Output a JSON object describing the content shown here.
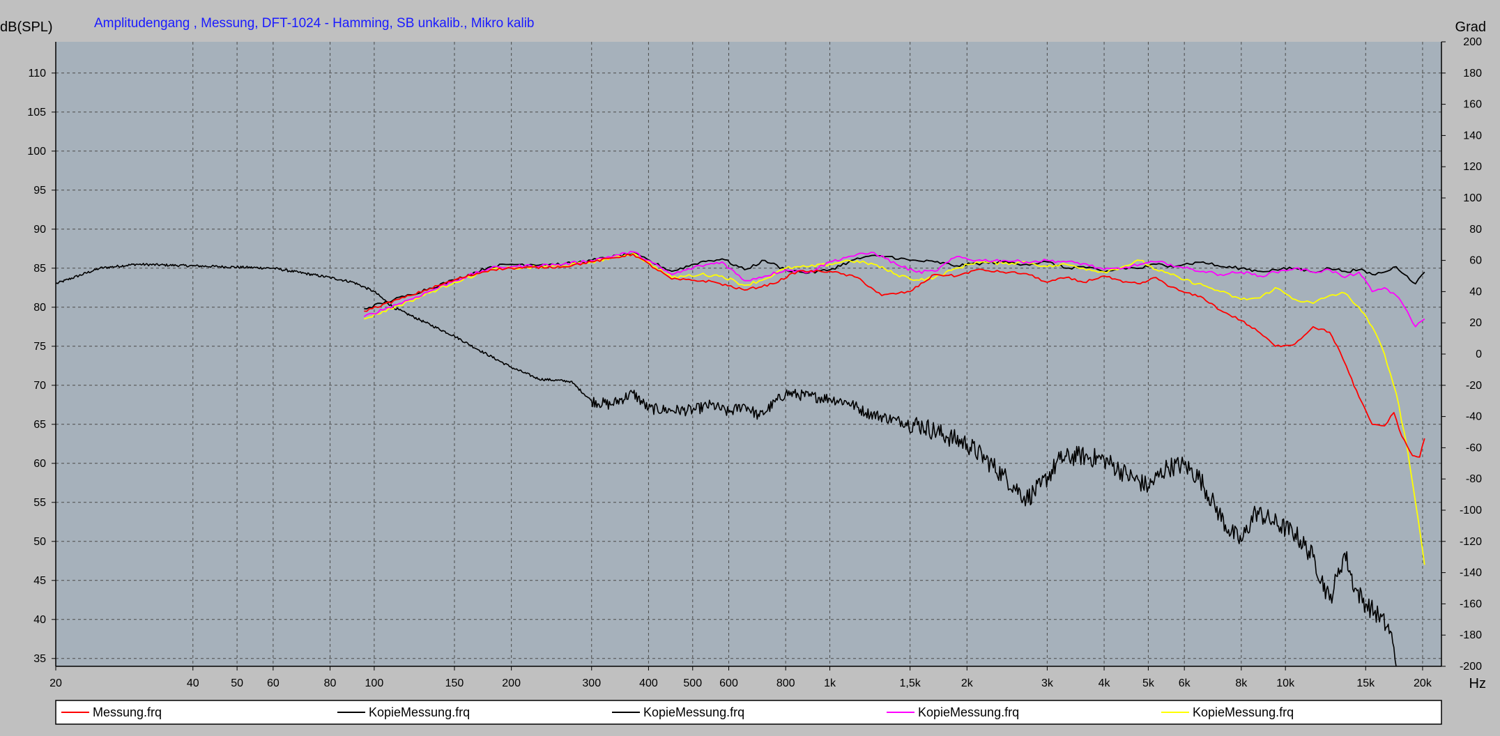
{
  "chart_data": {
    "type": "line",
    "title": "Amplitudengang , Messung, DFT-1024 - Hamming, SB unkalib., Mikro kalib",
    "ylabel": "dB(SPL)",
    "y2label": "Grad",
    "xlabel": "Hz",
    "x_scale": "log",
    "xlim": [
      20,
      22000
    ],
    "ylim": [
      34,
      114
    ],
    "y2lim": [
      -200,
      200
    ],
    "grid": true,
    "plot_background": "#a6b1bb",
    "frame_background": "#c0c0c0",
    "x_ticks": [
      {
        "v": 20,
        "label": "20"
      },
      {
        "v": 40,
        "label": "40"
      },
      {
        "v": 50,
        "label": "50"
      },
      {
        "v": 60,
        "label": "60"
      },
      {
        "v": 80,
        "label": "80"
      },
      {
        "v": 100,
        "label": "100"
      },
      {
        "v": 150,
        "label": "150"
      },
      {
        "v": 200,
        "label": "200"
      },
      {
        "v": 300,
        "label": "300"
      },
      {
        "v": 400,
        "label": "400"
      },
      {
        "v": 500,
        "label": "500"
      },
      {
        "v": 600,
        "label": "600"
      },
      {
        "v": 800,
        "label": "800"
      },
      {
        "v": 1000,
        "label": "1k"
      },
      {
        "v": 1500,
        "label": "1,5k"
      },
      {
        "v": 2000,
        "label": "2k"
      },
      {
        "v": 3000,
        "label": "3k"
      },
      {
        "v": 4000,
        "label": "4k"
      },
      {
        "v": 5000,
        "label": "5k"
      },
      {
        "v": 6000,
        "label": "6k"
      },
      {
        "v": 8000,
        "label": "8k"
      },
      {
        "v": 10000,
        "label": "10k"
      },
      {
        "v": 15000,
        "label": "15k"
      },
      {
        "v": 20000,
        "label": "20k"
      }
    ],
    "y_ticks": [
      110,
      105,
      100,
      95,
      90,
      85,
      80,
      75,
      70,
      65,
      60,
      55,
      50,
      45,
      40,
      35
    ],
    "y2_ticks": [
      200,
      180,
      160,
      140,
      120,
      100,
      80,
      60,
      40,
      20,
      0,
      -20,
      -40,
      -60,
      -80,
      -100,
      -120,
      -140,
      -160,
      -180,
      -200
    ],
    "series": [
      {
        "name": "Messung.frq",
        "color": "#ff0000",
        "noise": 0.15,
        "x": [
          95,
          120,
          150,
          180,
          200,
          260,
          300,
          370,
          450,
          550,
          650,
          750,
          850,
          1000,
          1150,
          1300,
          1500,
          1700,
          1900,
          2100,
          2400,
          2700,
          3000,
          3300,
          3600,
          4000,
          4400,
          4800,
          5200,
          5600,
          6000,
          6600,
          7200,
          8000,
          8800,
          9500,
          10500,
          11500,
          12500,
          13000,
          13800,
          14500,
          15500,
          16500,
          17300,
          18000,
          19000,
          19700,
          20200
        ],
        "y": [
          79.5,
          81.5,
          83.5,
          84.8,
          85.0,
          85.2,
          85.8,
          86.8,
          83.6,
          83.3,
          82.2,
          83.0,
          84.6,
          84.6,
          83.8,
          81.5,
          82.0,
          84.2,
          84.0,
          84.8,
          84.5,
          84.3,
          83.2,
          83.8,
          83.2,
          84.0,
          83.2,
          83.0,
          83.8,
          82.6,
          81.9,
          81.2,
          79.6,
          78.3,
          76.7,
          75.0,
          75.3,
          77.5,
          76.8,
          75.0,
          71.5,
          68.5,
          65.0,
          64.8,
          66.5,
          63.5,
          61.0,
          60.8,
          63.2
        ]
      },
      {
        "name": "KopieMessung.frq",
        "color": "#000000",
        "noise": 0.8,
        "dense": true,
        "x": [
          20,
          25,
          30,
          40,
          60,
          80,
          90,
          100,
          110,
          130,
          150,
          170,
          200,
          230,
          270,
          300,
          330,
          370,
          400,
          450,
          500,
          550,
          600,
          650,
          700,
          800,
          900,
          1000,
          1100,
          1200,
          1400,
          1600,
          1800,
          2000,
          2200,
          2400,
          2700,
          2900,
          3200,
          3500,
          4000,
          4500,
          5000,
          5500,
          6000,
          6500,
          7000,
          7500,
          8000,
          8600,
          9400,
          10500,
          11500,
          12500,
          13000,
          13500,
          14200,
          15000,
          16000,
          17000,
          17500
        ],
        "y": [
          83.0,
          85.0,
          85.5,
          85.3,
          85.0,
          83.8,
          83.2,
          82.0,
          80.0,
          78.0,
          76.3,
          74.5,
          72.3,
          70.8,
          70.5,
          68.0,
          67.5,
          69.0,
          67.0,
          66.8,
          66.8,
          67.5,
          66.5,
          67.5,
          66.0,
          69.0,
          68.6,
          68.3,
          67.8,
          66.5,
          65.5,
          64.8,
          63.5,
          62.5,
          60.5,
          58.5,
          55.5,
          57.0,
          60.5,
          61.0,
          60.5,
          58.5,
          57.0,
          59.5,
          59.8,
          58.0,
          54.5,
          51.5,
          50.0,
          53.8,
          52.5,
          51.0,
          48.0,
          42.5,
          45.5,
          48.5,
          44.0,
          42.0,
          40.5,
          38.5,
          34.0
        ]
      },
      {
        "name": "KopieMessung.frq",
        "color": "#000000",
        "noise": 0.2,
        "x": [
          95,
          120,
          150,
          180,
          200,
          260,
          300,
          370,
          450,
          520,
          580,
          650,
          720,
          800,
          900,
          1000,
          1100,
          1200,
          1350,
          1500,
          1700,
          1900,
          2100,
          2400,
          2700,
          3000,
          3300,
          3600,
          4000,
          4400,
          4800,
          5200,
          5600,
          6000,
          6600,
          7200,
          8000,
          8800,
          9500,
          10500,
          11500,
          12500,
          13500,
          14500,
          15500,
          16500,
          17500,
          18500,
          19300,
          20200
        ],
        "y": [
          79.8,
          81.6,
          83.5,
          85.2,
          85.5,
          85.5,
          86.0,
          86.9,
          84.6,
          85.8,
          86.2,
          84.8,
          86.0,
          84.8,
          84.4,
          84.8,
          85.8,
          86.5,
          86.5,
          86.0,
          85.8,
          85.3,
          85.6,
          85.8,
          85.5,
          85.8,
          85.0,
          85.2,
          84.5,
          85.0,
          85.0,
          85.5,
          85.3,
          85.5,
          85.8,
          85.2,
          85.0,
          84.6,
          84.8,
          85.0,
          84.5,
          85.0,
          84.6,
          84.8,
          84.2,
          84.5,
          85.2,
          84.0,
          83.0,
          84.5
        ]
      },
      {
        "name": "KopieMessung.frq",
        "color": "#ff00ff",
        "noise": 0.2,
        "x": [
          95,
          120,
          150,
          180,
          200,
          260,
          300,
          370,
          450,
          520,
          580,
          650,
          720,
          800,
          900,
          1000,
          1100,
          1250,
          1400,
          1550,
          1700,
          1900,
          2100,
          2400,
          2700,
          3000,
          3300,
          3600,
          4000,
          4400,
          4800,
          5200,
          5600,
          6000,
          6600,
          7200,
          8000,
          8800,
          9500,
          10500,
          11500,
          12500,
          13500,
          14500,
          15500,
          16500,
          17500,
          18500,
          19300,
          20200
        ],
        "y": [
          78.8,
          81.0,
          83.4,
          85.0,
          85.2,
          85.5,
          86.0,
          87.1,
          84.2,
          85.3,
          85.8,
          83.4,
          84.0,
          84.8,
          84.5,
          85.8,
          86.5,
          87.0,
          85.5,
          84.5,
          84.6,
          86.5,
          86.0,
          86.0,
          85.8,
          86.0,
          85.8,
          85.6,
          84.8,
          85.0,
          85.5,
          85.8,
          85.5,
          85.0,
          84.6,
          84.2,
          84.5,
          84.0,
          84.5,
          85.0,
          84.5,
          84.8,
          83.8,
          84.5,
          82.0,
          82.5,
          81.5,
          79.5,
          77.5,
          78.5
        ]
      },
      {
        "name": "KopieMessung.frq",
        "color": "#ffff00",
        "noise": 0.2,
        "x": [
          95,
          120,
          150,
          180,
          200,
          260,
          300,
          370,
          450,
          520,
          580,
          650,
          720,
          800,
          900,
          1000,
          1100,
          1250,
          1400,
          1550,
          1700,
          1900,
          2100,
          2400,
          2700,
          3000,
          3300,
          3600,
          4000,
          4400,
          4800,
          5200,
          5600,
          6000,
          6600,
          7200,
          8000,
          8800,
          9500,
          10500,
          11500,
          12500,
          13500,
          14500,
          15500,
          16500,
          17500,
          18500,
          19300,
          20200
        ],
        "y": [
          78.5,
          80.8,
          83.2,
          84.8,
          85.0,
          85.3,
          85.8,
          86.9,
          83.8,
          84.2,
          84.0,
          82.8,
          83.6,
          85.0,
          85.2,
          85.5,
          86.0,
          85.5,
          84.2,
          83.5,
          83.8,
          85.0,
          85.8,
          85.6,
          85.8,
          85.2,
          85.5,
          85.0,
          84.5,
          85.2,
          86.0,
          84.8,
          84.2,
          83.5,
          82.8,
          82.0,
          81.0,
          81.2,
          82.5,
          81.0,
          80.5,
          81.5,
          81.8,
          80.0,
          77.5,
          74.0,
          69.0,
          62.0,
          55.0,
          47.0
        ]
      }
    ],
    "legend": {
      "placement": "bottom",
      "entries": [
        {
          "label": "Messung.frq",
          "color": "#ff0000"
        },
        {
          "label": "KopieMessung.frq",
          "color": "#000000"
        },
        {
          "label": "KopieMessung.frq",
          "color": "#000000"
        },
        {
          "label": "KopieMessung.frq",
          "color": "#ff00ff"
        },
        {
          "label": "KopieMessung.frq",
          "color": "#ffff00"
        }
      ]
    }
  }
}
